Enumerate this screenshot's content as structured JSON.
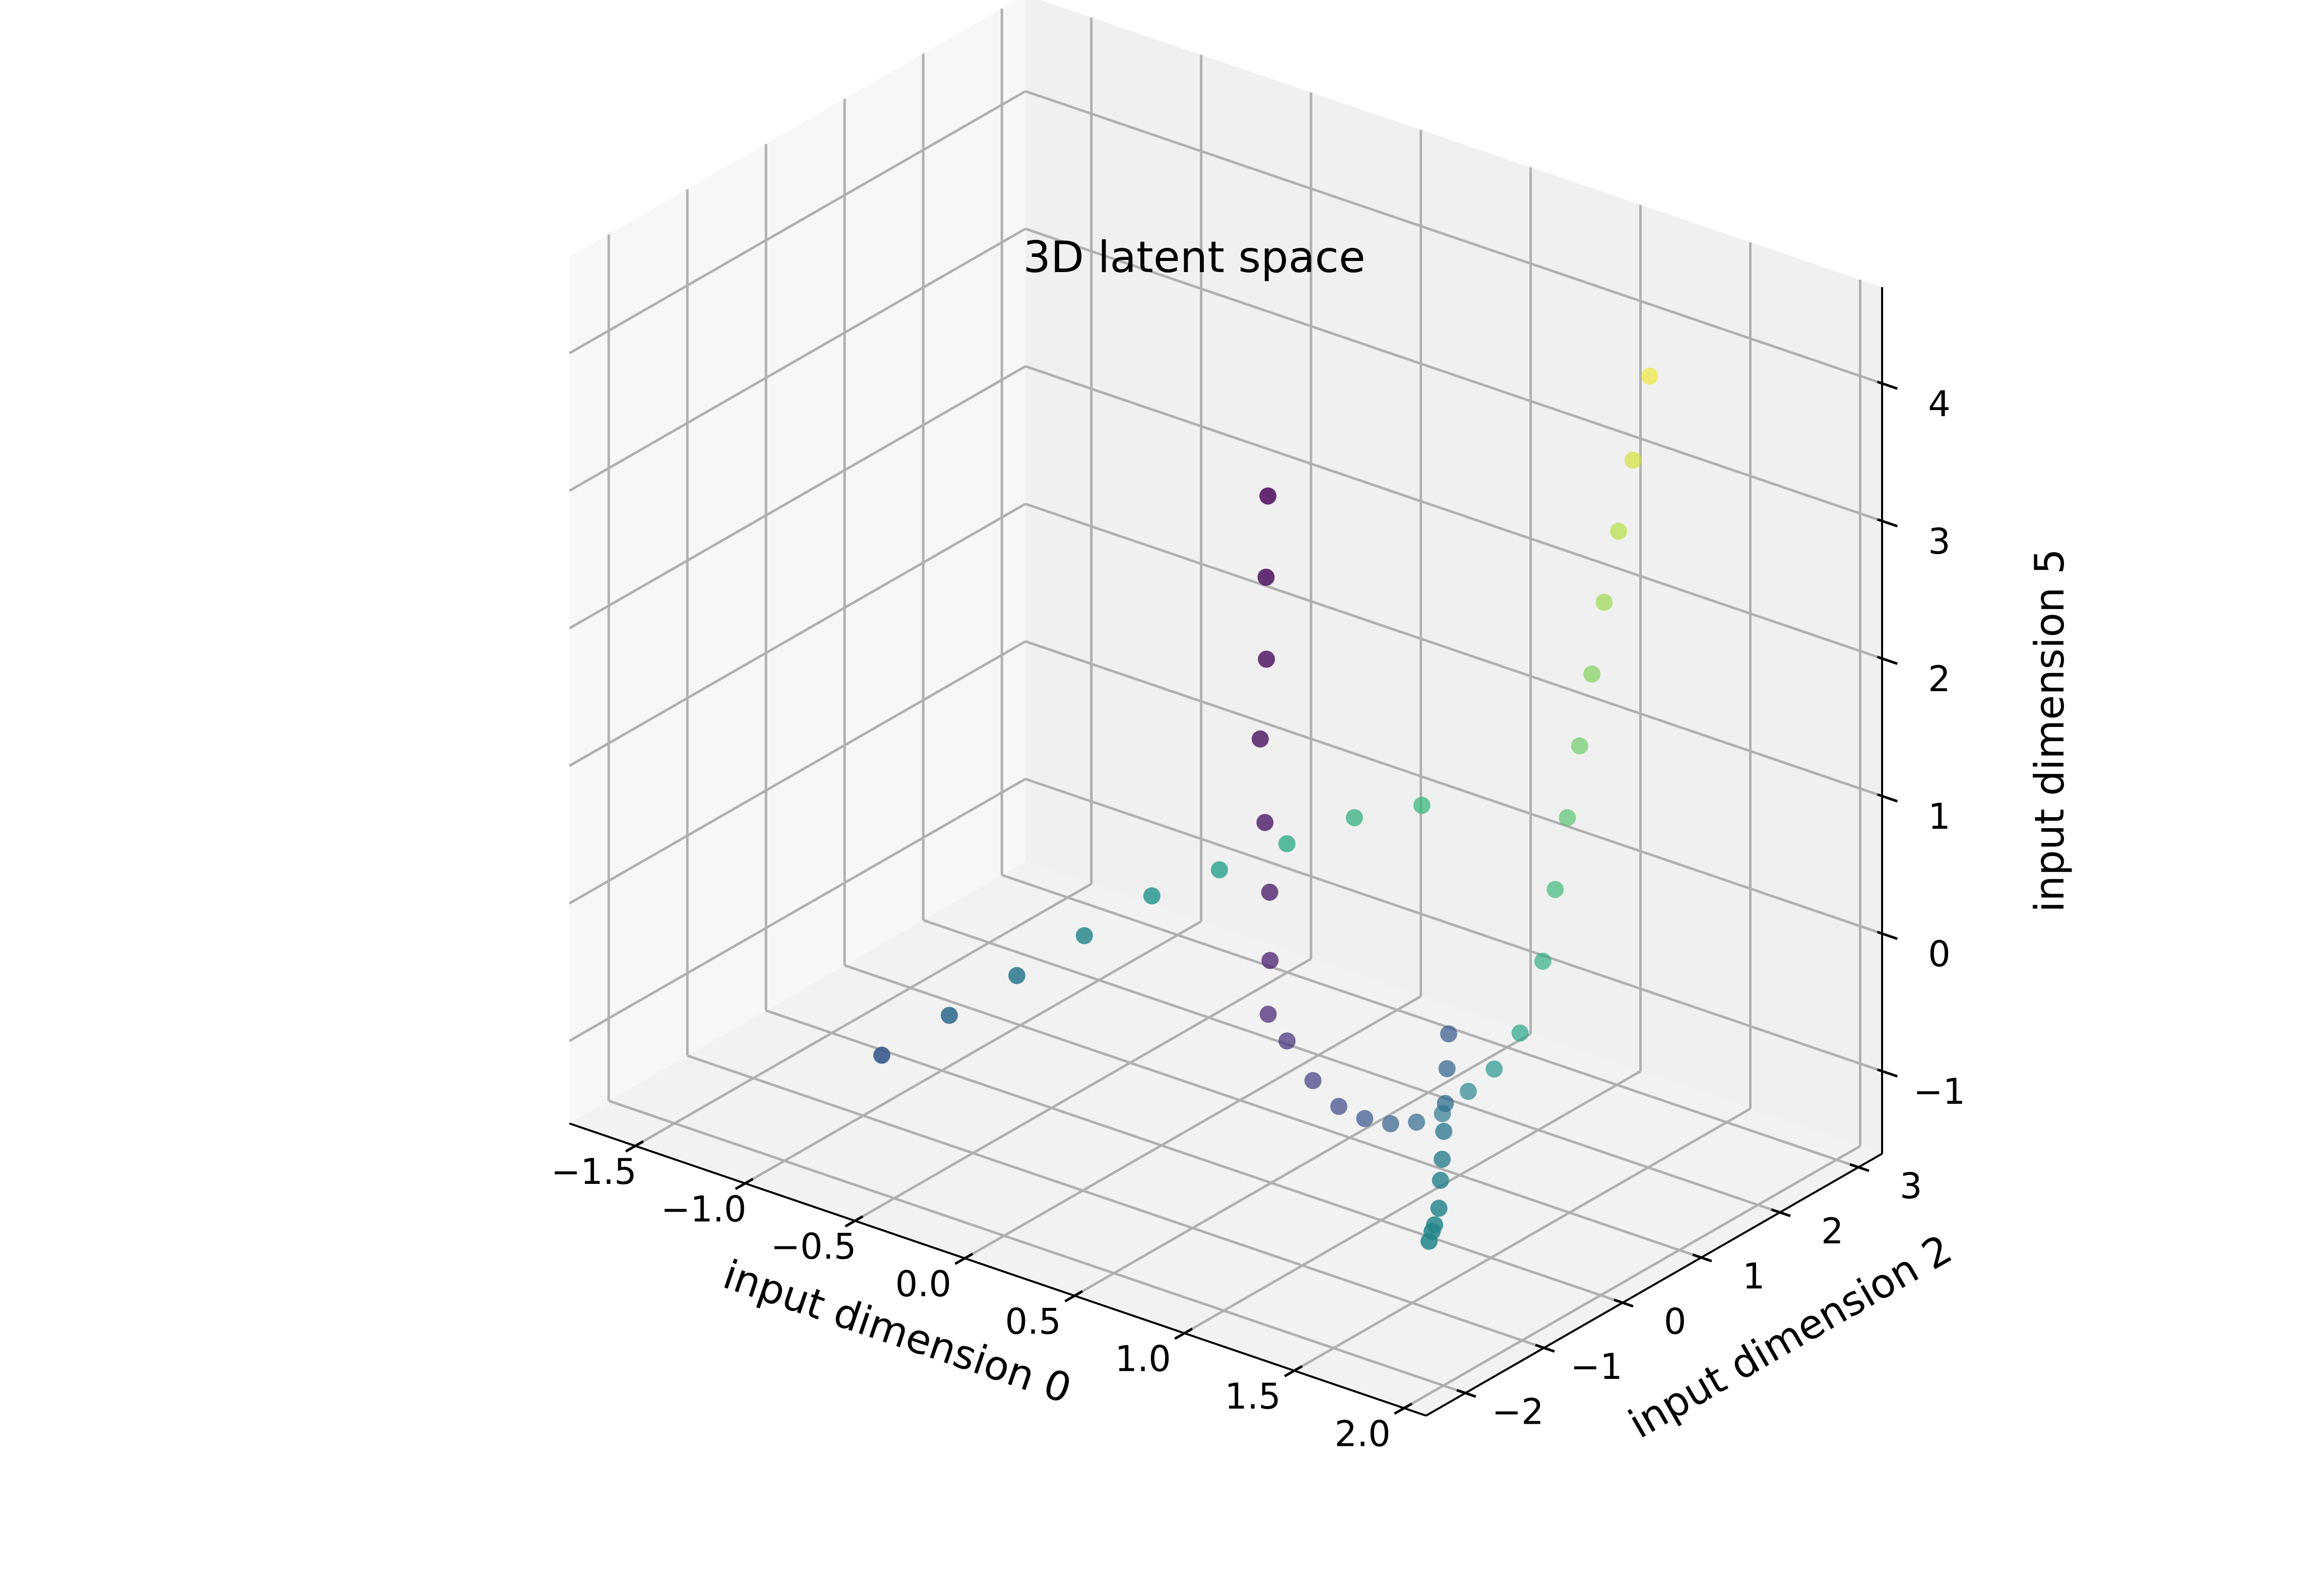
{
  "chart_data": {
    "type": "scatter",
    "projection": "3d",
    "title": "3D latent space",
    "xlabel": "input dimension 0",
    "ylabel": "input dimension 2",
    "zlabel": "input dimension 5",
    "xlim": [
      -1.8,
      2.1
    ],
    "ylim": [
      -2.5,
      3.3
    ],
    "zlim": [
      -1.6,
      4.7
    ],
    "xticks": [
      -1.5,
      -1.0,
      -0.5,
      0.0,
      0.5,
      1.0,
      1.5,
      2.0
    ],
    "yticks": [
      -2,
      -1,
      0,
      1,
      2,
      3
    ],
    "zticks": [
      -1,
      0,
      1,
      2,
      3,
      4
    ],
    "xtick_labels": [
      "−1.5",
      "−1.0",
      "−0.5",
      "0.0",
      "0.5",
      "1.0",
      "1.5",
      "2.0"
    ],
    "ytick_labels": [
      "−2",
      "−1",
      "0",
      "1",
      "2",
      "3"
    ],
    "ztick_labels": [
      "−1",
      "0",
      "1",
      "2",
      "3",
      "4"
    ],
    "grid": true,
    "colormap": "viridis",
    "pane_color": "#f2f2f2",
    "grid_color": "#b0b0b0",
    "series": [
      {
        "segment": "left-rising-arm",
        "x": [
          0.7,
          0.62,
          0.55,
          0.45,
          0.4,
          0.35,
          0.28,
          0.2
        ],
        "y": [
          -0.6,
          -0.4,
          -0.2,
          0.0,
          0.2,
          0.4,
          0.6,
          0.8
        ],
        "z": [
          3.7,
          3.0,
          2.3,
          1.6,
          0.9,
          0.3,
          -0.3,
          -0.8
        ],
        "c": [
          0.0,
          0.01,
          0.02,
          0.03,
          0.04,
          0.06,
          0.08,
          0.1
        ]
      },
      {
        "segment": "bottom-curve",
        "x": [
          0.25,
          0.35,
          0.45,
          0.55,
          0.65,
          0.75,
          0.85,
          0.95,
          1.05,
          1.15
        ],
        "y": [
          0.9,
          0.95,
          1.0,
          1.05,
          1.1,
          1.15,
          1.2,
          1.25,
          1.3,
          1.35
        ],
        "z": [
          -1.0,
          -1.25,
          -1.4,
          -1.45,
          -1.45,
          -1.4,
          -1.3,
          -1.1,
          -0.9,
          -0.6
        ],
        "c": [
          0.14,
          0.18,
          0.22,
          0.26,
          0.3,
          0.34,
          0.4,
          0.46,
          0.52,
          0.58
        ]
      },
      {
        "segment": "right-rising-arm",
        "x": [
          1.2,
          1.22,
          1.24,
          1.26,
          1.28,
          1.3,
          1.33,
          1.36,
          1.4
        ],
        "y": [
          1.5,
          1.6,
          1.7,
          1.8,
          1.9,
          2.0,
          2.1,
          2.2,
          2.3
        ],
        "z": [
          -0.1,
          0.4,
          0.9,
          1.4,
          1.9,
          2.4,
          2.9,
          3.4,
          4.0
        ],
        "c": [
          0.62,
          0.67,
          0.72,
          0.76,
          0.8,
          0.84,
          0.88,
          0.93,
          0.98
        ]
      },
      {
        "segment": "ridge-line",
        "x": [
          -0.7,
          -0.5,
          -0.3,
          -0.1,
          0.1,
          0.3,
          0.5,
          0.7,
          0.9
        ],
        "y": [
          -1.6,
          -1.3,
          -1.0,
          -0.7,
          -0.4,
          -0.1,
          0.2,
          0.5,
          0.8
        ],
        "z": [
          -0.8,
          -0.5,
          -0.2,
          0.1,
          0.4,
          0.6,
          0.8,
          1.0,
          1.1
        ],
        "c": [
          0.28,
          0.34,
          0.4,
          0.46,
          0.52,
          0.56,
          0.6,
          0.64,
          0.66
        ]
      },
      {
        "segment": "flat-tail",
        "x": [
          0.95,
          1.05,
          1.15,
          1.25,
          1.35,
          1.45,
          1.55,
          1.62,
          1.68,
          1.72
        ],
        "y": [
          1.0,
          0.7,
          0.4,
          0.1,
          -0.2,
          -0.5,
          -0.8,
          -1.05,
          -1.25,
          -1.4
        ],
        "z": [
          -0.6,
          -0.7,
          -0.8,
          -0.85,
          -0.9,
          -0.9,
          -0.95,
          -0.95,
          -0.9,
          -0.9
        ],
        "c": [
          0.28,
          0.32,
          0.36,
          0.4,
          0.42,
          0.44,
          0.45,
          0.46,
          0.46,
          0.46
        ]
      }
    ]
  }
}
